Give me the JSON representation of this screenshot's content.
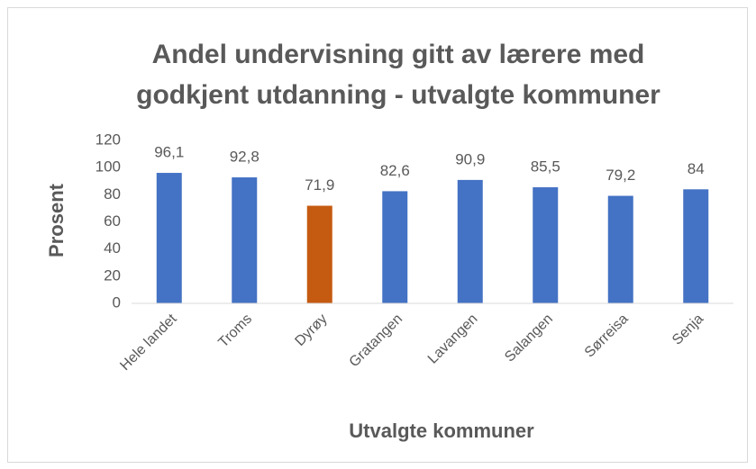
{
  "chart_data": {
    "type": "bar",
    "title": [
      "Andel undervisning gitt av lærere med",
      "godkjent utdanning - utvalgte kommuner"
    ],
    "x_label": "Utvalgte kommuner",
    "y_label": "Prosent",
    "categories": [
      "Hele landet",
      "Troms",
      "Dyrøy",
      "Gratangen",
      "Lavangen",
      "Salangen",
      "Sørreisa",
      "Senja"
    ],
    "values": [
      96.1,
      92.8,
      71.9,
      82.6,
      90.9,
      85.5,
      79.2,
      84
    ],
    "value_labels": [
      "96,1",
      "92,8",
      "71,9",
      "82,6",
      "90,9",
      "85,5",
      "79,2",
      "84"
    ],
    "colors": [
      "#4472c4",
      "#4472c4",
      "#c55a11",
      "#4472c4",
      "#4472c4",
      "#4472c4",
      "#4472c4",
      "#4472c4"
    ],
    "ylim": [
      0,
      120
    ],
    "yticks": [
      0,
      20,
      40,
      60,
      80,
      100,
      120
    ],
    "grid": false
  }
}
